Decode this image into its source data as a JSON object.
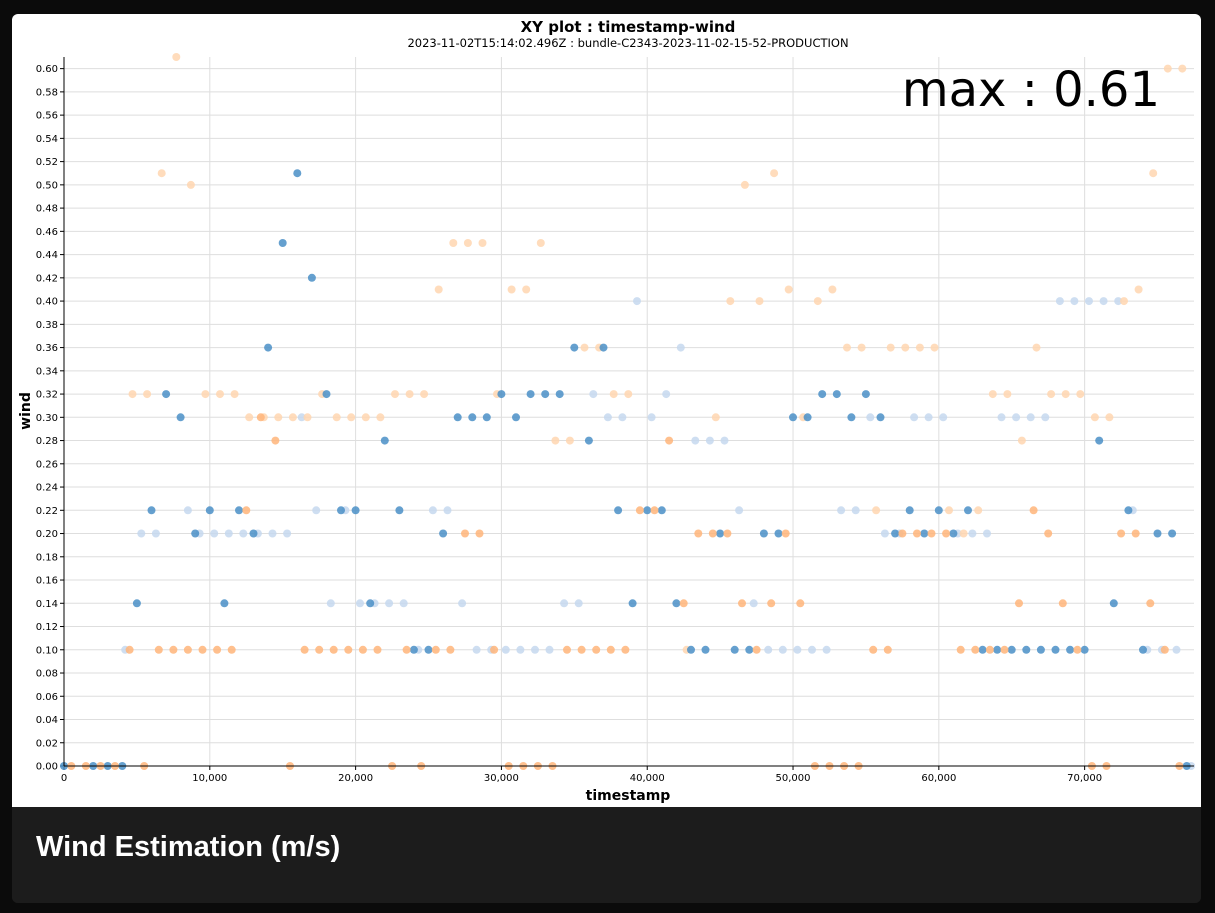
{
  "footer": {
    "title": "Wind Estimation (m/s)"
  },
  "chart_data": {
    "type": "scatter",
    "title": "XY plot : timestamp-wind",
    "subtitle": "2023-11-02T15:14:02.496Z : bundle-C2343-2023-11-02-15-52-PRODUCTION",
    "xlabel": "timestamp",
    "ylabel": "wind",
    "annotation": "max : 0.61",
    "xlim": [
      0,
      77500
    ],
    "ylim": [
      0,
      0.61
    ],
    "xticks": [
      0,
      10000,
      20000,
      30000,
      40000,
      50000,
      60000,
      70000
    ],
    "xtick_labels": [
      "0",
      "10,000",
      "20,000",
      "30,000",
      "40,000",
      "50,000",
      "60,000",
      "70,000"
    ],
    "yticks": [
      0,
      0.02,
      0.04,
      0.06,
      0.08,
      0.1,
      0.12,
      0.14,
      0.16,
      0.18,
      0.2,
      0.22,
      0.24,
      0.26,
      0.28,
      0.3,
      0.32,
      0.34,
      0.36,
      0.38,
      0.4,
      0.42,
      0.44,
      0.46,
      0.48,
      0.5,
      0.52,
      0.54,
      0.56,
      0.58,
      0.6
    ],
    "ytick_labels": [
      "0.00",
      "0.02",
      "0.04",
      "0.06",
      "0.08",
      "0.10",
      "0.12",
      "0.14",
      "0.16",
      "0.18",
      "0.20",
      "0.22",
      "0.24",
      "0.26",
      "0.28",
      "0.30",
      "0.32",
      "0.34",
      "0.36",
      "0.38",
      "0.40",
      "0.42",
      "0.44",
      "0.46",
      "0.48",
      "0.50",
      "0.52",
      "0.54",
      "0.56",
      "0.58",
      "0.60"
    ],
    "grid": true,
    "colors": [
      "#4a8fc7",
      "#ffb57a",
      "#c5d8ee",
      "#ffd6b0"
    ],
    "series": [
      {
        "color": "#4a8fc7",
        "x": [
          0,
          2000,
          3000,
          4000,
          5000,
          6000,
          7000,
          8000,
          9000,
          10000,
          11000,
          12000,
          13000,
          14000,
          15000,
          16000,
          17000,
          18000,
          19000,
          20000,
          21000,
          22000,
          23000,
          24000,
          25000,
          26000,
          27000,
          28000,
          29000,
          30000,
          31000,
          32000,
          33000,
          34000,
          35000,
          36000,
          37000,
          38000,
          39000,
          40000,
          41000,
          42000,
          43000,
          44000,
          45000,
          46000,
          47000,
          48000,
          49000,
          50000,
          51000,
          52000,
          53000,
          54000,
          55000,
          56000,
          57000,
          58000,
          59000,
          60000,
          61000,
          62000,
          63000,
          64000,
          65000,
          66000,
          67000,
          68000,
          69000,
          70000,
          71000,
          72000,
          73000,
          74000,
          75000,
          76000,
          77000
        ],
        "y": [
          0,
          0,
          0,
          0,
          0.14,
          0.22,
          0.32,
          0.3,
          0.2,
          0.22,
          0.14,
          0.22,
          0.2,
          0.36,
          0.45,
          0.51,
          0.42,
          0.32,
          0.22,
          0.22,
          0.14,
          0.28,
          0.22,
          0.1,
          0.1,
          0.2,
          0.3,
          0.3,
          0.3,
          0.32,
          0.3,
          0.32,
          0.32,
          0.32,
          0.36,
          0.28,
          0.36,
          0.22,
          0.14,
          0.22,
          0.22,
          0.14,
          0.1,
          0.1,
          0.2,
          0.1,
          0.1,
          0.2,
          0.2,
          0.3,
          0.3,
          0.32,
          0.32,
          0.3,
          0.32,
          0.3,
          0.2,
          0.22,
          0.2,
          0.22,
          0.2,
          0.22,
          0.1,
          0.1,
          0.1,
          0.1,
          0.1,
          0.1,
          0.1,
          0.1,
          0.28,
          0.14,
          0.22,
          0.1,
          0.2,
          0.2,
          0
        ]
      },
      {
        "color": "#ffb57a",
        "x": [
          500,
          1500,
          2500,
          3500,
          4500,
          5500,
          6500,
          7500,
          8500,
          9500,
          10500,
          11500,
          12500,
          13500,
          14500,
          15500,
          16500,
          17500,
          18500,
          19500,
          20500,
          21500,
          22500,
          23500,
          24500,
          25500,
          26500,
          27500,
          28500,
          29500,
          30500,
          31500,
          32500,
          33500,
          34500,
          35500,
          36500,
          37500,
          38500,
          39500,
          40500,
          41500,
          42500,
          43500,
          44500,
          45500,
          46500,
          47500,
          48500,
          49500,
          50500,
          51500,
          52500,
          53500,
          54500,
          55500,
          56500,
          57500,
          58500,
          59500,
          60500,
          61500,
          62500,
          63500,
          64500,
          65500,
          66500,
          67500,
          68500,
          69500,
          70500,
          71500,
          72500,
          73500,
          74500,
          75500,
          76500
        ],
        "y": [
          0,
          0,
          0,
          0,
          0.1,
          0,
          0.1,
          0.1,
          0.1,
          0.1,
          0.1,
          0.1,
          0.22,
          0.3,
          0.28,
          0,
          0.1,
          0.1,
          0.1,
          0.1,
          0.1,
          0.1,
          0,
          0.1,
          0,
          0.1,
          0.1,
          0.2,
          0.2,
          0.1,
          0,
          0,
          0,
          0,
          0.1,
          0.1,
          0.1,
          0.1,
          0.1,
          0.22,
          0.22,
          0.28,
          0.14,
          0.2,
          0.2,
          0.2,
          0.14,
          0.1,
          0.14,
          0.2,
          0.14,
          0,
          0,
          0,
          0,
          0.1,
          0.1,
          0.2,
          0.2,
          0.2,
          0.2,
          0.1,
          0.1,
          0.1,
          0.1,
          0.14,
          0.22,
          0.2,
          0.14,
          0.1,
          0,
          0,
          0.2,
          0.2,
          0.14,
          0.1,
          0
        ]
      },
      {
        "color": "#c5d8ee",
        "x": [
          4200,
          5300,
          6300,
          8500,
          9300,
          10300,
          11300,
          12300,
          13300,
          14300,
          15300,
          16300,
          17300,
          18300,
          19300,
          20300,
          21300,
          22300,
          23300,
          24300,
          25300,
          26300,
          27300,
          28300,
          29300,
          30300,
          31300,
          32300,
          33300,
          34300,
          35300,
          36300,
          37300,
          38300,
          39300,
          40300,
          41300,
          42300,
          43300,
          44300,
          45300,
          46300,
          47300,
          48300,
          49300,
          50300,
          51300,
          52300,
          53300,
          54300,
          55300,
          56300,
          57300,
          58300,
          59300,
          60300,
          61300,
          62300,
          63300,
          64300,
          65300,
          66300,
          67300,
          68300,
          69300,
          70300,
          71300,
          72300,
          73300,
          74300,
          75300,
          76300,
          77300
        ],
        "y": [
          0.1,
          0.2,
          0.2,
          0.22,
          0.2,
          0.2,
          0.2,
          0.2,
          0.2,
          0.2,
          0.2,
          0.3,
          0.22,
          0.14,
          0.22,
          0.14,
          0.14,
          0.14,
          0.14,
          0.1,
          0.22,
          0.22,
          0.14,
          0.1,
          0.1,
          0.1,
          0.1,
          0.1,
          0.1,
          0.14,
          0.14,
          0.32,
          0.3,
          0.3,
          0.4,
          0.3,
          0.32,
          0.36,
          0.28,
          0.28,
          0.28,
          0.22,
          0.14,
          0.1,
          0.1,
          0.1,
          0.1,
          0.1,
          0.22,
          0.22,
          0.3,
          0.2,
          0.2,
          0.3,
          0.3,
          0.3,
          0.2,
          0.2,
          0.2,
          0.3,
          0.3,
          0.3,
          0.3,
          0.4,
          0.4,
          0.4,
          0.4,
          0.4,
          0.22,
          0.1,
          0.1,
          0.1,
          0
        ]
      },
      {
        "color": "#ffd6b0",
        "x": [
          4700,
          5700,
          6700,
          7700,
          8700,
          9700,
          10700,
          11700,
          12700,
          13700,
          14700,
          15700,
          16700,
          17700,
          18700,
          19700,
          20700,
          21700,
          22700,
          23700,
          24700,
          25700,
          26700,
          27700,
          28700,
          29700,
          30700,
          31700,
          32700,
          33700,
          34700,
          35700,
          36700,
          37700,
          38700,
          42700,
          44700,
          45700,
          46700,
          47700,
          48700,
          49700,
          50700,
          51700,
          52700,
          53700,
          54700,
          55700,
          56700,
          57700,
          58700,
          59700,
          60700,
          61700,
          62700,
          63700,
          64700,
          65700,
          66700,
          67700,
          68700,
          69700,
          70700,
          71700,
          72700,
          73700,
          74700,
          75700,
          76700
        ],
        "y": [
          0.32,
          0.32,
          0.51,
          0.61,
          0.5,
          0.32,
          0.32,
          0.32,
          0.3,
          0.3,
          0.3,
          0.3,
          0.3,
          0.32,
          0.3,
          0.3,
          0.3,
          0.3,
          0.32,
          0.32,
          0.32,
          0.41,
          0.45,
          0.45,
          0.45,
          0.32,
          0.41,
          0.41,
          0.45,
          0.28,
          0.28,
          0.36,
          0.36,
          0.32,
          0.32,
          0.1,
          0.3,
          0.4,
          0.5,
          0.4,
          0.51,
          0.41,
          0.3,
          0.4,
          0.41,
          0.36,
          0.36,
          0.22,
          0.36,
          0.36,
          0.36,
          0.36,
          0.22,
          0.2,
          0.22,
          0.32,
          0.32,
          0.28,
          0.36,
          0.32,
          0.32,
          0.32,
          0.3,
          0.3,
          0.4,
          0.41,
          0.51,
          0.6,
          0.6
        ]
      }
    ]
  }
}
